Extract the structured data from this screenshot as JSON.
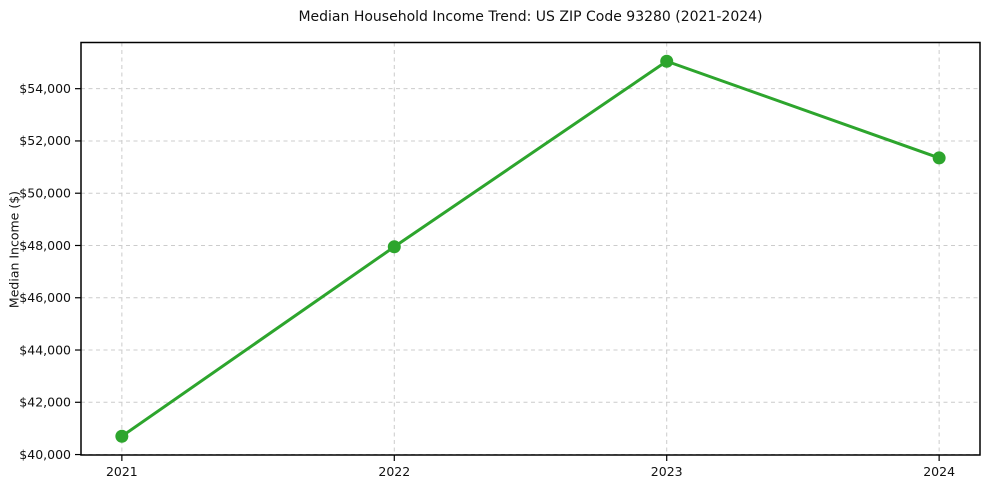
{
  "title": "Median Household Income Trend: US ZIP Code 93280 (2021-2024)",
  "chart_data": {
    "type": "line",
    "title": "Median Household Income Trend: US ZIP Code 93280 (2021-2024)",
    "xlabel": "",
    "ylabel": "Median Income ($)",
    "x": [
      2021,
      2022,
      2023,
      2024
    ],
    "series": [
      {
        "name": "Median Household Income",
        "values": [
          40700,
          47950,
          55050,
          51350
        ]
      }
    ],
    "xticks": [
      2021,
      2022,
      2023,
      2024
    ],
    "xtick_labels": [
      "2021",
      "2022",
      "2023",
      "2024"
    ],
    "yticks": [
      40000,
      42000,
      44000,
      46000,
      48000,
      50000,
      52000,
      54000
    ],
    "ytick_labels": [
      "$40,000",
      "$42,000",
      "$44,000",
      "$46,000",
      "$48,000",
      "$50,000",
      "$52,000",
      "$54,000"
    ],
    "xlim": [
      2020.85,
      2024.15
    ],
    "ylim": [
      39983,
      55767
    ],
    "grid": true,
    "legend": "none",
    "line_color": "#2da52d",
    "marker_color": "#2da52d",
    "grid_color": "#cccccc",
    "axis_color": "#000000",
    "background_color": "#ffffff"
  }
}
